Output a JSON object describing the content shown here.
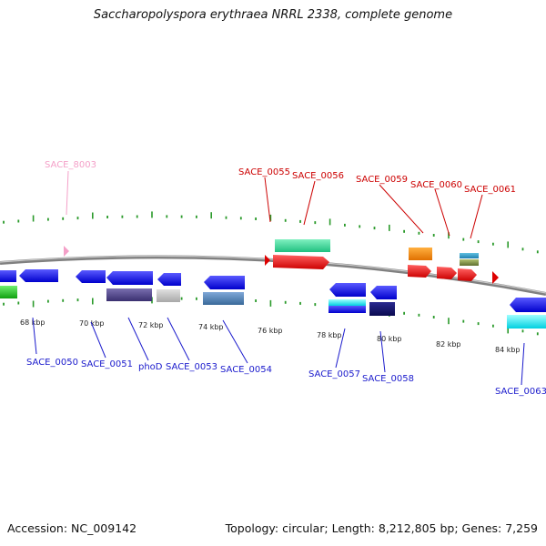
{
  "title": "Saccharopolyspora erythraea NRRL 2338, complete genome",
  "footer": {
    "accession": "Accession: NC_009142",
    "summary": "Topology: circular; Length: 8,212,805 bp; Genes: 7,259"
  },
  "scale_labels": [
    "68 kbp",
    "70 kbp",
    "72 kbp",
    "74 kbp",
    "76 kbp",
    "78 kbp",
    "80 kbp",
    "82 kbp",
    "84 kbp"
  ],
  "gene_labels": [
    {
      "text": "SACE_8003",
      "color": "#f4a0c8"
    },
    {
      "text": "SACE_0055",
      "color": "#cc0000"
    },
    {
      "text": "SACE_0056",
      "color": "#cc0000"
    },
    {
      "text": "SACE_0059",
      "color": "#cc0000"
    },
    {
      "text": "SACE_0060",
      "color": "#cc0000"
    },
    {
      "text": "SACE_0061",
      "color": "#cc0000"
    },
    {
      "text": "SACE_0050",
      "color": "#1a1acc"
    },
    {
      "text": "SACE_0051",
      "color": "#1a1acc"
    },
    {
      "text": "phoD",
      "color": "#1a1acc"
    },
    {
      "text": "SACE_0053",
      "color": "#1a1acc"
    },
    {
      "text": "SACE_0054",
      "color": "#1a1acc"
    },
    {
      "text": "SACE_0057",
      "color": "#1a1acc"
    },
    {
      "text": "SACE_0058",
      "color": "#1a1acc"
    },
    {
      "text": "SACE_0063",
      "color": "#1a1acc"
    }
  ]
}
